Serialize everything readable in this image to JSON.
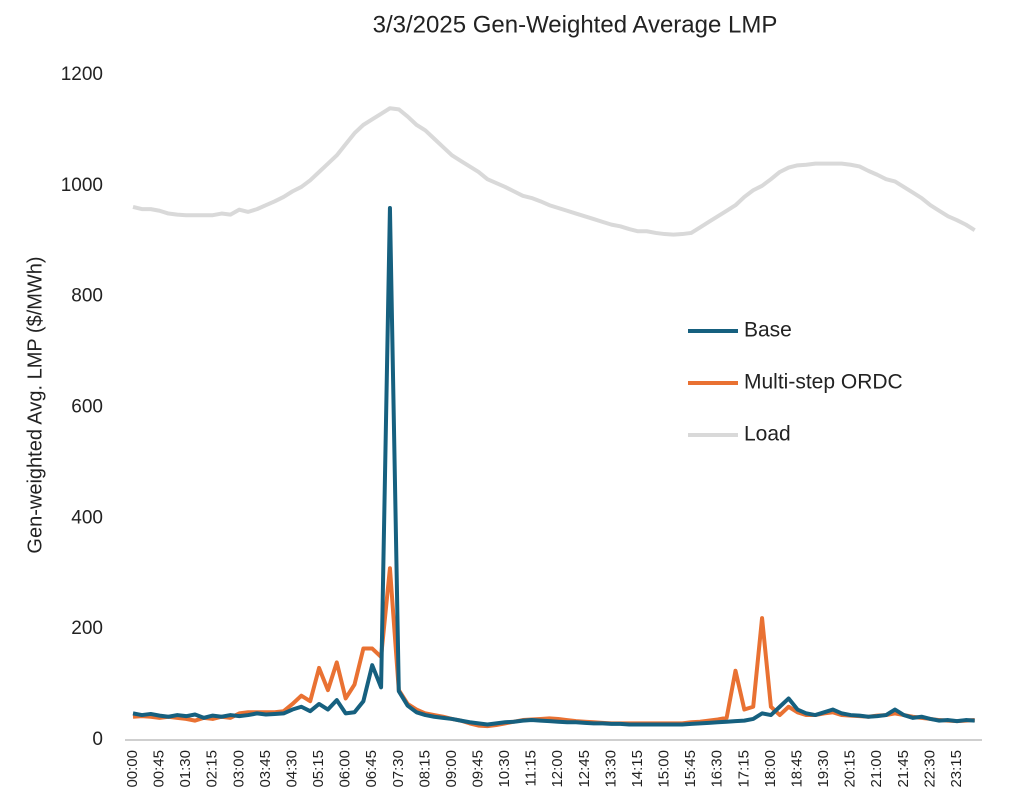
{
  "chart_data": {
    "type": "line",
    "title": "3/3/2025 Gen-Weighted Average LMP",
    "y_label": "Gen-weighted Avg. LMP ($/MWh)",
    "categories": [
      "00:00",
      null,
      null,
      "00:45",
      null,
      null,
      "01:30",
      null,
      null,
      "02:15",
      null,
      null,
      "03:00",
      null,
      null,
      "03:45",
      null,
      null,
      "04:30",
      null,
      null,
      "05:15",
      null,
      null,
      "06:00",
      null,
      null,
      "06:45",
      null,
      null,
      "07:30",
      null,
      null,
      "08:15",
      null,
      null,
      "09:00",
      null,
      null,
      "09:45",
      null,
      null,
      "10:30",
      null,
      null,
      "11:15",
      null,
      null,
      "12:00",
      null,
      null,
      "12:45",
      null,
      null,
      "13:30",
      null,
      null,
      "14:15",
      null,
      null,
      "15:00",
      null,
      null,
      "15:45",
      null,
      null,
      "16:30",
      null,
      null,
      "17:15",
      null,
      null,
      "18:00",
      null,
      null,
      "18:45",
      null,
      null,
      "19:30",
      null,
      null,
      "20:15",
      null,
      null,
      "21:00",
      null,
      null,
      "21:45",
      null,
      null,
      "22:30",
      null,
      null,
      "23:15",
      null,
      null
    ],
    "series": [
      {
        "name": "Base",
        "color": "#16607f",
        "values": [
          48,
          45,
          47,
          44,
          42,
          45,
          43,
          46,
          40,
          44,
          42,
          45,
          43,
          45,
          48,
          46,
          47,
          48,
          55,
          60,
          52,
          65,
          55,
          72,
          48,
          50,
          70,
          135,
          95,
          960,
          88,
          62,
          50,
          45,
          42,
          40,
          38,
          35,
          32,
          30,
          28,
          30,
          32,
          33,
          35,
          36,
          35,
          34,
          33,
          32,
          32,
          31,
          30,
          30,
          29,
          29,
          28,
          28,
          28,
          28,
          28,
          28,
          28,
          29,
          30,
          31,
          32,
          33,
          34,
          35,
          38,
          48,
          45,
          60,
          75,
          55,
          48,
          45,
          50,
          55,
          48,
          45,
          44,
          42,
          43,
          45,
          55,
          45,
          40,
          42,
          38,
          35,
          36,
          34,
          36,
          35
        ]
      },
      {
        "name": "Multi-step ORDC",
        "color": "#e97132",
        "values": [
          42,
          43,
          42,
          40,
          42,
          40,
          38,
          35,
          40,
          38,
          42,
          40,
          48,
          50,
          50,
          50,
          50,
          52,
          65,
          80,
          70,
          130,
          90,
          140,
          75,
          100,
          165,
          165,
          150,
          310,
          90,
          65,
          55,
          48,
          45,
          42,
          38,
          35,
          30,
          26,
          25,
          27,
          30,
          33,
          36,
          37,
          38,
          39,
          38,
          36,
          34,
          33,
          32,
          31,
          30,
          30,
          30,
          30,
          30,
          30,
          30,
          30,
          30,
          32,
          33,
          35,
          37,
          40,
          125,
          55,
          60,
          220,
          60,
          45,
          60,
          50,
          45,
          45,
          48,
          50,
          45,
          44,
          43,
          42,
          44,
          45,
          48,
          45,
          42,
          40,
          38,
          36,
          35,
          34,
          35,
          36
        ]
      },
      {
        "name": "Load",
        "color": "#d9d9d9",
        "values": [
          962,
          958,
          958,
          955,
          950,
          948,
          947,
          947,
          947,
          947,
          950,
          948,
          957,
          953,
          958,
          965,
          972,
          980,
          990,
          998,
          1010,
          1025,
          1040,
          1055,
          1075,
          1095,
          1110,
          1120,
          1130,
          1140,
          1138,
          1125,
          1110,
          1100,
          1085,
          1070,
          1055,
          1045,
          1035,
          1025,
          1012,
          1005,
          998,
          990,
          982,
          978,
          972,
          965,
          960,
          955,
          950,
          945,
          940,
          935,
          930,
          927,
          922,
          918,
          918,
          915,
          913,
          912,
          913,
          915,
          925,
          935,
          945,
          955,
          965,
          980,
          992,
          1000,
          1012,
          1025,
          1033,
          1037,
          1038,
          1040,
          1040,
          1040,
          1040,
          1038,
          1035,
          1027,
          1020,
          1012,
          1008,
          998,
          988,
          978,
          965,
          955,
          945,
          938,
          930,
          920
        ]
      }
    ],
    "ylim": [
      0,
      1200
    ],
    "yticks": [
      0,
      200,
      400,
      600,
      800,
      1000,
      1200
    ],
    "grid": false,
    "legend": "right"
  }
}
